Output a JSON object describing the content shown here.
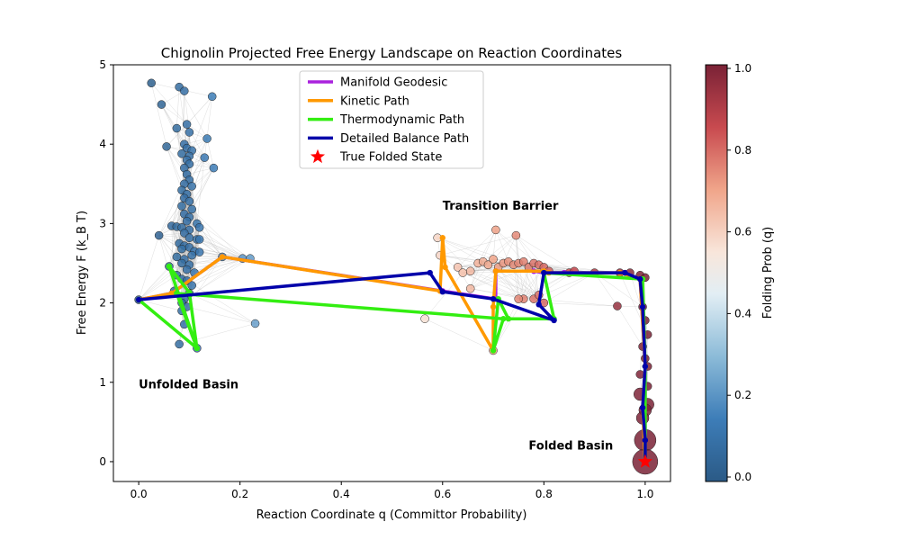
{
  "chart_data": {
    "type": "scatter",
    "title": "Chignolin Projected Free Energy Landscape on Reaction Coordinates",
    "xlabel": "Reaction Coordinate q (Committor Probability)",
    "ylabel": "Free Energy F (k_B T)",
    "xlim": [
      -0.05,
      1.05
    ],
    "ylim": [
      -0.25,
      5.0
    ],
    "xticks": [
      "0.0",
      "0.2",
      "0.4",
      "0.6",
      "0.8",
      "1.0"
    ],
    "xtick_values": [
      0.0,
      0.2,
      0.4,
      0.6,
      0.8,
      1.0
    ],
    "yticks": [
      "0",
      "1",
      "2",
      "3",
      "4",
      "5"
    ],
    "ytick_values": [
      0,
      1,
      2,
      3,
      4,
      5
    ],
    "grid": false,
    "legend_position": "top-center",
    "colorbar": {
      "label": "Folding Prob (q)",
      "ticks": [
        "0.0",
        "0.2",
        "0.4",
        "0.6",
        "0.8",
        "1.0"
      ],
      "tick_values": [
        0.0,
        0.2,
        0.4,
        0.6,
        0.8,
        1.0
      ],
      "colormap": "RdBu_r"
    },
    "annotations": [
      {
        "text": "Unfolded Basin",
        "x": 0.0,
        "y": 0.97,
        "color": "#0000cc"
      },
      {
        "text": "Transition Barrier",
        "x": 0.6,
        "y": 3.22,
        "color": "#808080"
      },
      {
        "text": "Folded Basin",
        "x": 0.77,
        "y": 0.2,
        "color": "#ff0000"
      }
    ],
    "states": [
      [
        0.025,
        4.77
      ],
      [
        0.08,
        4.72
      ],
      [
        0.09,
        4.67
      ],
      [
        0.145,
        4.6
      ],
      [
        0.045,
        4.5
      ],
      [
        0.075,
        4.2
      ],
      [
        0.095,
        4.25
      ],
      [
        0.1,
        4.15
      ],
      [
        0.135,
        4.07
      ],
      [
        0.055,
        3.97
      ],
      [
        0.09,
        4.0
      ],
      [
        0.095,
        3.95
      ],
      [
        0.105,
        3.92
      ],
      [
        0.085,
        3.88
      ],
      [
        0.1,
        3.85
      ],
      [
        0.13,
        3.83
      ],
      [
        0.095,
        3.8
      ],
      [
        0.1,
        3.75
      ],
      [
        0.09,
        3.7
      ],
      [
        0.148,
        3.7
      ],
      [
        0.095,
        3.62
      ],
      [
        0.1,
        3.55
      ],
      [
        0.09,
        3.5
      ],
      [
        0.105,
        3.47
      ],
      [
        0.085,
        3.42
      ],
      [
        0.095,
        3.37
      ],
      [
        0.09,
        3.32
      ],
      [
        0.1,
        3.28
      ],
      [
        0.085,
        3.22
      ],
      [
        0.105,
        3.18
      ],
      [
        0.09,
        3.12
      ],
      [
        0.1,
        3.08
      ],
      [
        0.095,
        3.03
      ],
      [
        0.115,
        3.0
      ],
      [
        0.065,
        2.97
      ],
      [
        0.075,
        2.96
      ],
      [
        0.085,
        2.95
      ],
      [
        0.1,
        2.92
      ],
      [
        0.09,
        2.88
      ],
      [
        0.12,
        2.95
      ],
      [
        0.04,
        2.85
      ],
      [
        0.1,
        2.82
      ],
      [
        0.115,
        2.8
      ],
      [
        0.12,
        2.8
      ],
      [
        0.08,
        2.75
      ],
      [
        0.09,
        2.72
      ],
      [
        0.1,
        2.7
      ],
      [
        0.085,
        2.68
      ],
      [
        0.11,
        2.65
      ],
      [
        0.12,
        2.64
      ],
      [
        0.105,
        2.6
      ],
      [
        0.075,
        2.58
      ],
      [
        0.09,
        2.55
      ],
      [
        0.085,
        2.5
      ],
      [
        0.1,
        2.48
      ],
      [
        0.06,
        2.46
      ],
      [
        0.095,
        2.42
      ],
      [
        0.11,
        2.38
      ],
      [
        0.075,
        2.35
      ],
      [
        0.085,
        2.3
      ],
      [
        0.095,
        2.28
      ],
      [
        0.105,
        2.22
      ],
      [
        0.07,
        2.15
      ],
      [
        0.1,
        2.12
      ],
      [
        0.09,
        2.05
      ],
      [
        0.085,
        2.0
      ],
      [
        0.095,
        1.95
      ],
      [
        0.085,
        1.9
      ],
      [
        0.09,
        1.73
      ],
      [
        0.08,
        1.48
      ],
      [
        0.115,
        1.43
      ],
      [
        0.0,
        2.04
      ],
      [
        0.165,
        2.58
      ],
      [
        0.205,
        2.56
      ],
      [
        0.22,
        2.56
      ],
      [
        0.23,
        1.74
      ],
      [
        0.59,
        2.82
      ],
      [
        0.595,
        2.6
      ],
      [
        0.63,
        2.45
      ],
      [
        0.64,
        2.38
      ],
      [
        0.655,
        2.4
      ],
      [
        0.67,
        2.5
      ],
      [
        0.68,
        2.52
      ],
      [
        0.69,
        2.48
      ],
      [
        0.7,
        2.55
      ],
      [
        0.71,
        2.45
      ],
      [
        0.72,
        2.5
      ],
      [
        0.73,
        2.52
      ],
      [
        0.74,
        2.48
      ],
      [
        0.75,
        2.5
      ],
      [
        0.76,
        2.52
      ],
      [
        0.77,
        2.45
      ],
      [
        0.78,
        2.5
      ],
      [
        0.79,
        2.48
      ],
      [
        0.8,
        2.45
      ],
      [
        0.81,
        2.4
      ],
      [
        0.705,
        2.92
      ],
      [
        0.745,
        2.85
      ],
      [
        0.565,
        1.8
      ],
      [
        0.655,
        2.18
      ],
      [
        0.7,
        1.4
      ],
      [
        0.76,
        2.05
      ],
      [
        0.78,
        2.05
      ],
      [
        0.79,
        2.1
      ],
      [
        0.75,
        2.05
      ],
      [
        0.8,
        2.0
      ],
      [
        0.85,
        2.38
      ],
      [
        0.86,
        2.4
      ],
      [
        0.9,
        2.38
      ],
      [
        0.95,
        2.38
      ],
      [
        0.97,
        2.38
      ],
      [
        0.945,
        1.96
      ],
      [
        0.99,
        2.35
      ],
      [
        1.0,
        2.32
      ],
      [
        0.995,
        1.95
      ],
      [
        1.0,
        1.78
      ],
      [
        1.005,
        1.6
      ],
      [
        0.995,
        1.45
      ],
      [
        1.0,
        1.3
      ],
      [
        1.005,
        1.2
      ],
      [
        0.99,
        1.1
      ],
      [
        1.005,
        0.95
      ],
      [
        0.99,
        0.85
      ],
      [
        1.005,
        0.72
      ],
      [
        1.0,
        0.65
      ],
      [
        0.995,
        0.55
      ],
      [
        1.0,
        0.27
      ],
      [
        1.0,
        0.0
      ]
    ],
    "series": [
      {
        "name": "Manifold Geodesic",
        "color": "#aa22dd",
        "x": [
          0.0,
          0.065,
          0.165,
          0.6,
          0.705,
          0.705,
          0.78,
          0.8,
          0.84,
          0.96,
          0.99,
          1.0,
          1.0
        ],
        "y": [
          2.04,
          2.12,
          2.58,
          2.15,
          2.05,
          2.4,
          2.4,
          2.38,
          2.38,
          2.38,
          2.3,
          1.2,
          0.0
        ]
      },
      {
        "name": "Kinetic Path",
        "color": "#ff9900",
        "x": [
          0.0,
          0.065,
          0.165,
          0.595,
          0.6,
          0.605,
          0.7,
          0.7,
          0.705,
          0.8,
          0.81,
          0.95,
          0.99,
          1.0,
          0.995,
          1.0
        ],
        "y": [
          2.04,
          2.12,
          2.58,
          2.15,
          2.82,
          2.45,
          1.4,
          1.95,
          2.4,
          2.4,
          2.38,
          2.38,
          2.3,
          1.2,
          0.68,
          0.0
        ]
      },
      {
        "name": "Thermodynamic Path",
        "color": "#33ee11",
        "x": [
          0.0,
          0.115,
          0.06,
          0.1,
          0.115,
          0.075,
          0.72,
          0.7,
          0.71,
          0.73,
          0.82,
          0.8,
          0.995,
          1.0,
          1.0
        ],
        "y": [
          2.04,
          1.43,
          2.46,
          2.13,
          1.43,
          2.12,
          1.8,
          1.4,
          2.05,
          1.8,
          1.8,
          2.38,
          2.3,
          1.2,
          0.0
        ]
      },
      {
        "name": "Detailed Balance Path",
        "color": "#0000aa",
        "x": [
          0.0,
          0.575,
          0.6,
          0.7,
          0.82,
          0.79,
          0.8,
          0.96,
          0.99,
          0.995,
          1.0,
          0.995,
          1.0,
          1.0
        ],
        "y": [
          2.04,
          2.38,
          2.14,
          2.05,
          1.78,
          1.98,
          2.38,
          2.38,
          2.3,
          1.95,
          1.2,
          0.68,
          0.27,
          0.0
        ]
      }
    ],
    "true_folded_state": {
      "name": "True Folded State",
      "x": 1.0,
      "y": 0.0,
      "color": "#ff0000"
    }
  }
}
